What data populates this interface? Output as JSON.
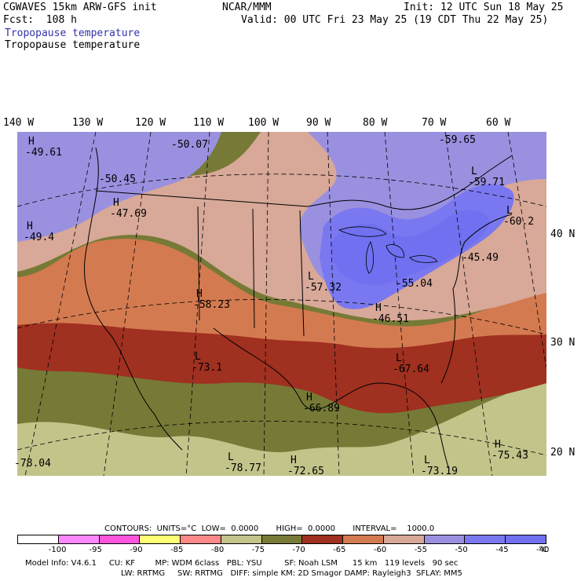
{
  "header": {
    "model": "CGWAVES 15km ARW-GFS init",
    "forecast": "Fcst:  108 h",
    "agency": "NCAR/MMM",
    "init": "Init: 12 UTC Sun 18 May 25",
    "valid": "Valid: 00 UTC Fri 23 May 25 (19 CDT Thu 22 May 25)",
    "field_title_blue": "Tropopause temperature",
    "field_title": "Tropopause temperature"
  },
  "longitude_labels": [
    "140 W",
    "130 W",
    "120 W",
    "110 W",
    "100 W",
    "90 W",
    "80 W",
    "70 W",
    "60 W"
  ],
  "latitude_labels": [
    "40 N",
    "30 N",
    "20 N"
  ],
  "map_labels": [
    {
      "letter": "H",
      "value": "-49.61"
    },
    {
      "letter": "",
      "value": "-50.07"
    },
    {
      "letter": "",
      "value": "-59.65"
    },
    {
      "letter": "",
      "value": "-50.45"
    },
    {
      "letter": "H",
      "value": "-47.69"
    },
    {
      "letter": "L",
      "value": "-59.71"
    },
    {
      "letter": "L",
      "value": "-60.2"
    },
    {
      "letter": "H",
      "value": "-49.4"
    },
    {
      "letter": "",
      "value": "-45.49"
    },
    {
      "letter": "L",
      "value": "-57.32"
    },
    {
      "letter": "H",
      "value": "-58.23"
    },
    {
      "letter": "",
      "value": "-55.04"
    },
    {
      "letter": "H",
      "value": "-46.51"
    },
    {
      "letter": "L",
      "value": "-73.1"
    },
    {
      "letter": "L",
      "value": "-67.64"
    },
    {
      "letter": "H",
      "value": "-66.89"
    },
    {
      "letter": "",
      "value": "-78.04"
    },
    {
      "letter": "L",
      "value": "-78.77"
    },
    {
      "letter": "H",
      "value": "-72.65"
    },
    {
      "letter": "H",
      "value": "-75.43"
    },
    {
      "letter": "L",
      "value": "-73.19"
    }
  ],
  "contours_line": "CONTOURS:  UNITS=°C  LOW=  0.0000       HIGH=  0.0000       INTERVAL=    1000.0",
  "colorbar": {
    "colors": [
      "#ffffff",
      "#ff88ff",
      "#ff55dd",
      "#ffff77",
      "#ff8888",
      "#c2c48a",
      "#767a36",
      "#a03020",
      "#d47a50",
      "#d8a898",
      "#9a90e0",
      "#7a78f0",
      "#7070f0"
    ],
    "ticks": [
      "-100",
      "-95",
      "-90",
      "-85",
      "-80",
      "-75",
      "-70",
      "-65",
      "-60",
      "-55",
      "-50",
      "-45",
      "-40"
    ],
    "unit": "°C"
  },
  "footer": {
    "line1": "Model Info: V4.6.1     CU: KF        MP: WDM 6class   PBL: YSU         SF: Noah LSM      15 km   119 levels   90 sec",
    "line2": "LW: RRTMG     SW: RRTMG   DIFF: simple KM: 2D Smagor DAMP: Rayleigh3  SFLAY: MM5"
  }
}
